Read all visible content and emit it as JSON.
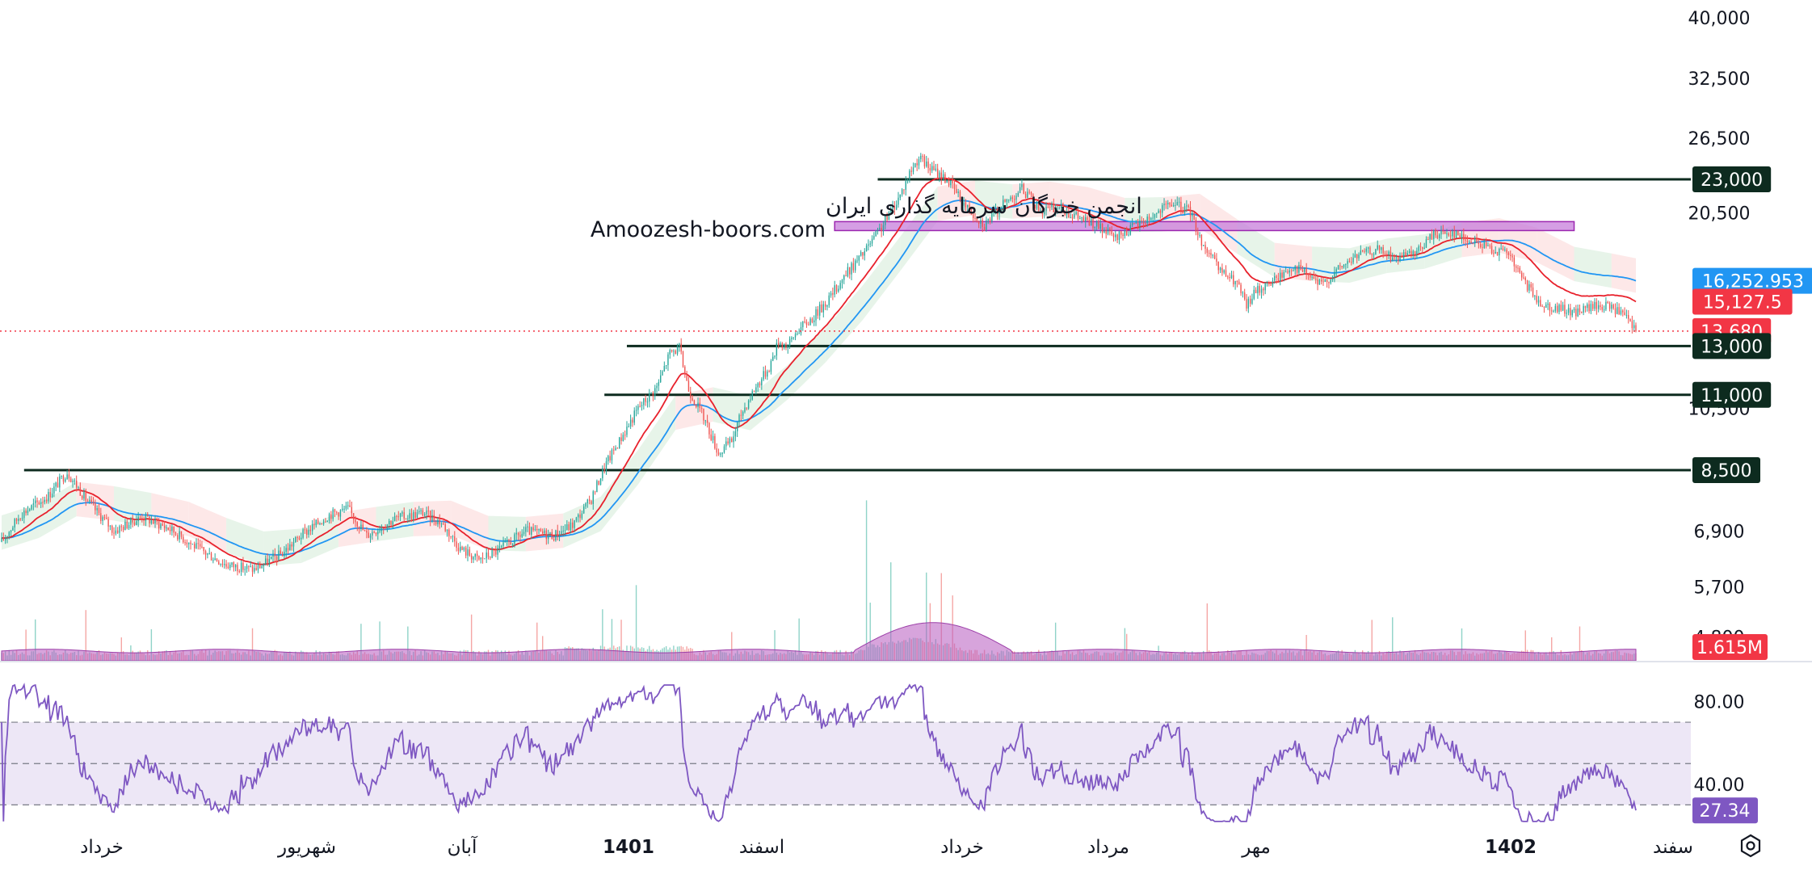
{
  "watermark": {
    "line1": "انجمن خبرگان سرمایه گذاری ایران",
    "line2": "Amoozesh-boors.com"
  },
  "colors": {
    "up": "#26a69a",
    "down": "#ef5350",
    "ema_fast": "#e8212c",
    "ema_slow": "#2196f3",
    "volume_area": "#b65ac0",
    "rsi_line": "#7e57c2",
    "rsi_band": "#ede7f6",
    "zone": "#c77ddb",
    "level_line": "#0d2b1f",
    "ichimoku_green": "#e3f2e5",
    "ichimoku_red": "#fde4e4",
    "last_price_dots": "#f23645"
  },
  "price_axis": {
    "scale": "log",
    "ticks": [
      {
        "label": "40,000",
        "value": 40000
      },
      {
        "label": "32,500",
        "value": 32500
      },
      {
        "label": "26,500",
        "value": 26500
      },
      {
        "label": "20,500",
        "value": 20500
      },
      {
        "label": "10,500",
        "value": 10500
      },
      {
        "label": "6,900",
        "value": 6900
      },
      {
        "label": "5,700",
        "value": 5700
      },
      {
        "label": "4,800",
        "value": 4800
      }
    ]
  },
  "level_tags": [
    {
      "label": "23,000",
      "value": 23000,
      "bg": "#0d2b1f"
    },
    {
      "label": "16,252.953",
      "value": 16252.953,
      "bg": "#2196f3"
    },
    {
      "label": "15,127.5",
      "value": 15127.5,
      "bg": "#f23645"
    },
    {
      "label": "13,680",
      "value": 13680,
      "bg": "#f23645"
    },
    {
      "label": "13,000",
      "value": 13000,
      "bg": "#0d2b1f"
    },
    {
      "label": "11,000",
      "value": 11000,
      "bg": "#0d2b1f"
    },
    {
      "label": "8,500",
      "value": 8500,
      "bg": "#0d2b1f"
    }
  ],
  "volume_tag": {
    "label": "1.615M",
    "bg": "#f23645"
  },
  "rsi_axis": {
    "ticks": [
      {
        "label": "80.00",
        "value": 80
      },
      {
        "label": "40.00",
        "value": 40
      }
    ],
    "current": {
      "label": "27.34",
      "value": 27.34,
      "bg": "#7e57c2"
    },
    "band": [
      30,
      70
    ],
    "mid": 50
  },
  "time_axis": [
    {
      "label": "خرداد",
      "bold": false
    },
    {
      "label": "شهریور",
      "bold": false
    },
    {
      "label": "آبان",
      "bold": false
    },
    {
      "label": "1401",
      "bold": true
    },
    {
      "label": "اسفند",
      "bold": false
    },
    {
      "label": "خرداد",
      "bold": false
    },
    {
      "label": "مرداد",
      "bold": false
    },
    {
      "label": "مهر",
      "bold": false
    },
    {
      "label": "1402",
      "bold": true
    },
    {
      "label": "سفند",
      "bold": false
    }
  ],
  "settings_icon": "gear-icon",
  "chart_data": {
    "type": "candlestick",
    "scale": "log",
    "ylim": [
      4600,
      42000
    ],
    "last_price": 13680,
    "ema_fast_last": 15127.5,
    "ema_slow_last": 16252.953,
    "resistance_zone": [
      19300,
      19900
    ],
    "levels": [
      23000,
      13000,
      11000,
      8500
    ],
    "close_path": [
      [
        0,
        6650
      ],
      [
        10,
        7300
      ],
      [
        25,
        7800
      ],
      [
        35,
        8450
      ],
      [
        45,
        7700
      ],
      [
        60,
        6900
      ],
      [
        75,
        7250
      ],
      [
        90,
        6950
      ],
      [
        105,
        6500
      ],
      [
        120,
        6150
      ],
      [
        135,
        6050
      ],
      [
        150,
        6400
      ],
      [
        160,
        6800
      ],
      [
        175,
        7300
      ],
      [
        185,
        7450
      ],
      [
        195,
        6800
      ],
      [
        210,
        7200
      ],
      [
        225,
        7350
      ],
      [
        235,
        7100
      ],
      [
        245,
        6500
      ],
      [
        255,
        6250
      ],
      [
        265,
        6450
      ],
      [
        280,
        6900
      ],
      [
        295,
        6800
      ],
      [
        305,
        7050
      ],
      [
        315,
        7700
      ],
      [
        322,
        8600
      ],
      [
        330,
        9400
      ],
      [
        340,
        10500
      ],
      [
        350,
        11300
      ],
      [
        357,
        12700
      ],
      [
        362,
        12900
      ],
      [
        367,
        11200
      ],
      [
        375,
        10200
      ],
      [
        383,
        9000
      ],
      [
        390,
        9400
      ],
      [
        395,
        10300
      ],
      [
        402,
        11200
      ],
      [
        410,
        12100
      ],
      [
        415,
        13200
      ],
      [
        420,
        13000
      ],
      [
        425,
        13700
      ],
      [
        433,
        14300
      ],
      [
        442,
        15300
      ],
      [
        450,
        16500
      ],
      [
        460,
        17800
      ],
      [
        470,
        19500
      ],
      [
        480,
        21800
      ],
      [
        485,
        23500
      ],
      [
        490,
        24800
      ],
      [
        495,
        24000
      ],
      [
        505,
        23000
      ],
      [
        515,
        21000
      ],
      [
        525,
        19700
      ],
      [
        535,
        21100
      ],
      [
        545,
        22300
      ],
      [
        555,
        20700
      ],
      [
        565,
        20900
      ],
      [
        575,
        20200
      ],
      [
        585,
        19600
      ],
      [
        595,
        18800
      ],
      [
        605,
        19600
      ],
      [
        615,
        20300
      ],
      [
        625,
        21200
      ],
      [
        635,
        20600
      ],
      [
        640,
        18800
      ],
      [
        650,
        16900
      ],
      [
        660,
        16100
      ],
      [
        665,
        14900
      ],
      [
        670,
        15700
      ],
      [
        680,
        16300
      ],
      [
        690,
        17100
      ],
      [
        695,
        16800
      ],
      [
        705,
        16000
      ],
      [
        715,
        17000
      ],
      [
        725,
        17800
      ],
      [
        735,
        18100
      ],
      [
        745,
        17500
      ],
      [
        755,
        17800
      ],
      [
        765,
        19100
      ],
      [
        775,
        19200
      ],
      [
        785,
        18600
      ],
      [
        795,
        18200
      ],
      [
        805,
        17800
      ],
      [
        812,
        16400
      ],
      [
        820,
        15200
      ],
      [
        830,
        14800
      ],
      [
        840,
        14600
      ],
      [
        850,
        14900
      ],
      [
        860,
        14900
      ],
      [
        868,
        14300
      ],
      [
        873,
        13680
      ]
    ]
  }
}
